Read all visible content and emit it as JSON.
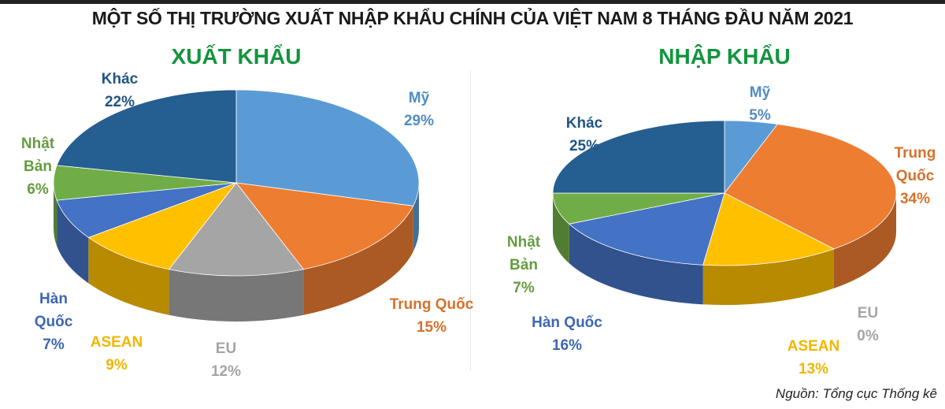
{
  "title": "MỘT SỐ THỊ TRƯỜNG XUẤT NHẬP KHẨU CHÍNH CỦA VIỆT NAM 8 THÁNG ĐẦU NĂM 2021",
  "source": "Nguồn: Tổng cục Thống kê",
  "chart_data": [
    {
      "type": "pie",
      "title": "XUẤT KHẨU",
      "style": "3d",
      "categories": [
        "Mỹ",
        "Trung Quốc",
        "EU",
        "ASEAN",
        "Hàn Quốc",
        "Nhật Bản",
        "Khác"
      ],
      "values": [
        29,
        15,
        12,
        9,
        7,
        6,
        22
      ],
      "labels": [
        "29%",
        "15%",
        "12%",
        "9%",
        "7%",
        "6%",
        "22%"
      ],
      "colors": [
        "#5b9bd5",
        "#ed7d31",
        "#a5a5a5",
        "#ffc000",
        "#4472c4",
        "#70ad47",
        "#255e91"
      ]
    },
    {
      "type": "pie",
      "title": "NHẬP KHẨU",
      "style": "3d",
      "categories": [
        "Mỹ",
        "Trung Quốc",
        "EU",
        "ASEAN",
        "Hàn Quốc",
        "Nhật Bản",
        "Khác"
      ],
      "values": [
        5,
        34,
        0,
        13,
        16,
        7,
        25
      ],
      "labels": [
        "5%",
        "34%",
        "0%",
        "13%",
        "16%",
        "7%",
        "25%"
      ],
      "colors": [
        "#5b9bd5",
        "#ed7d31",
        "#a5a5a5",
        "#ffc000",
        "#4472c4",
        "#70ad47",
        "#255e91"
      ]
    }
  ]
}
